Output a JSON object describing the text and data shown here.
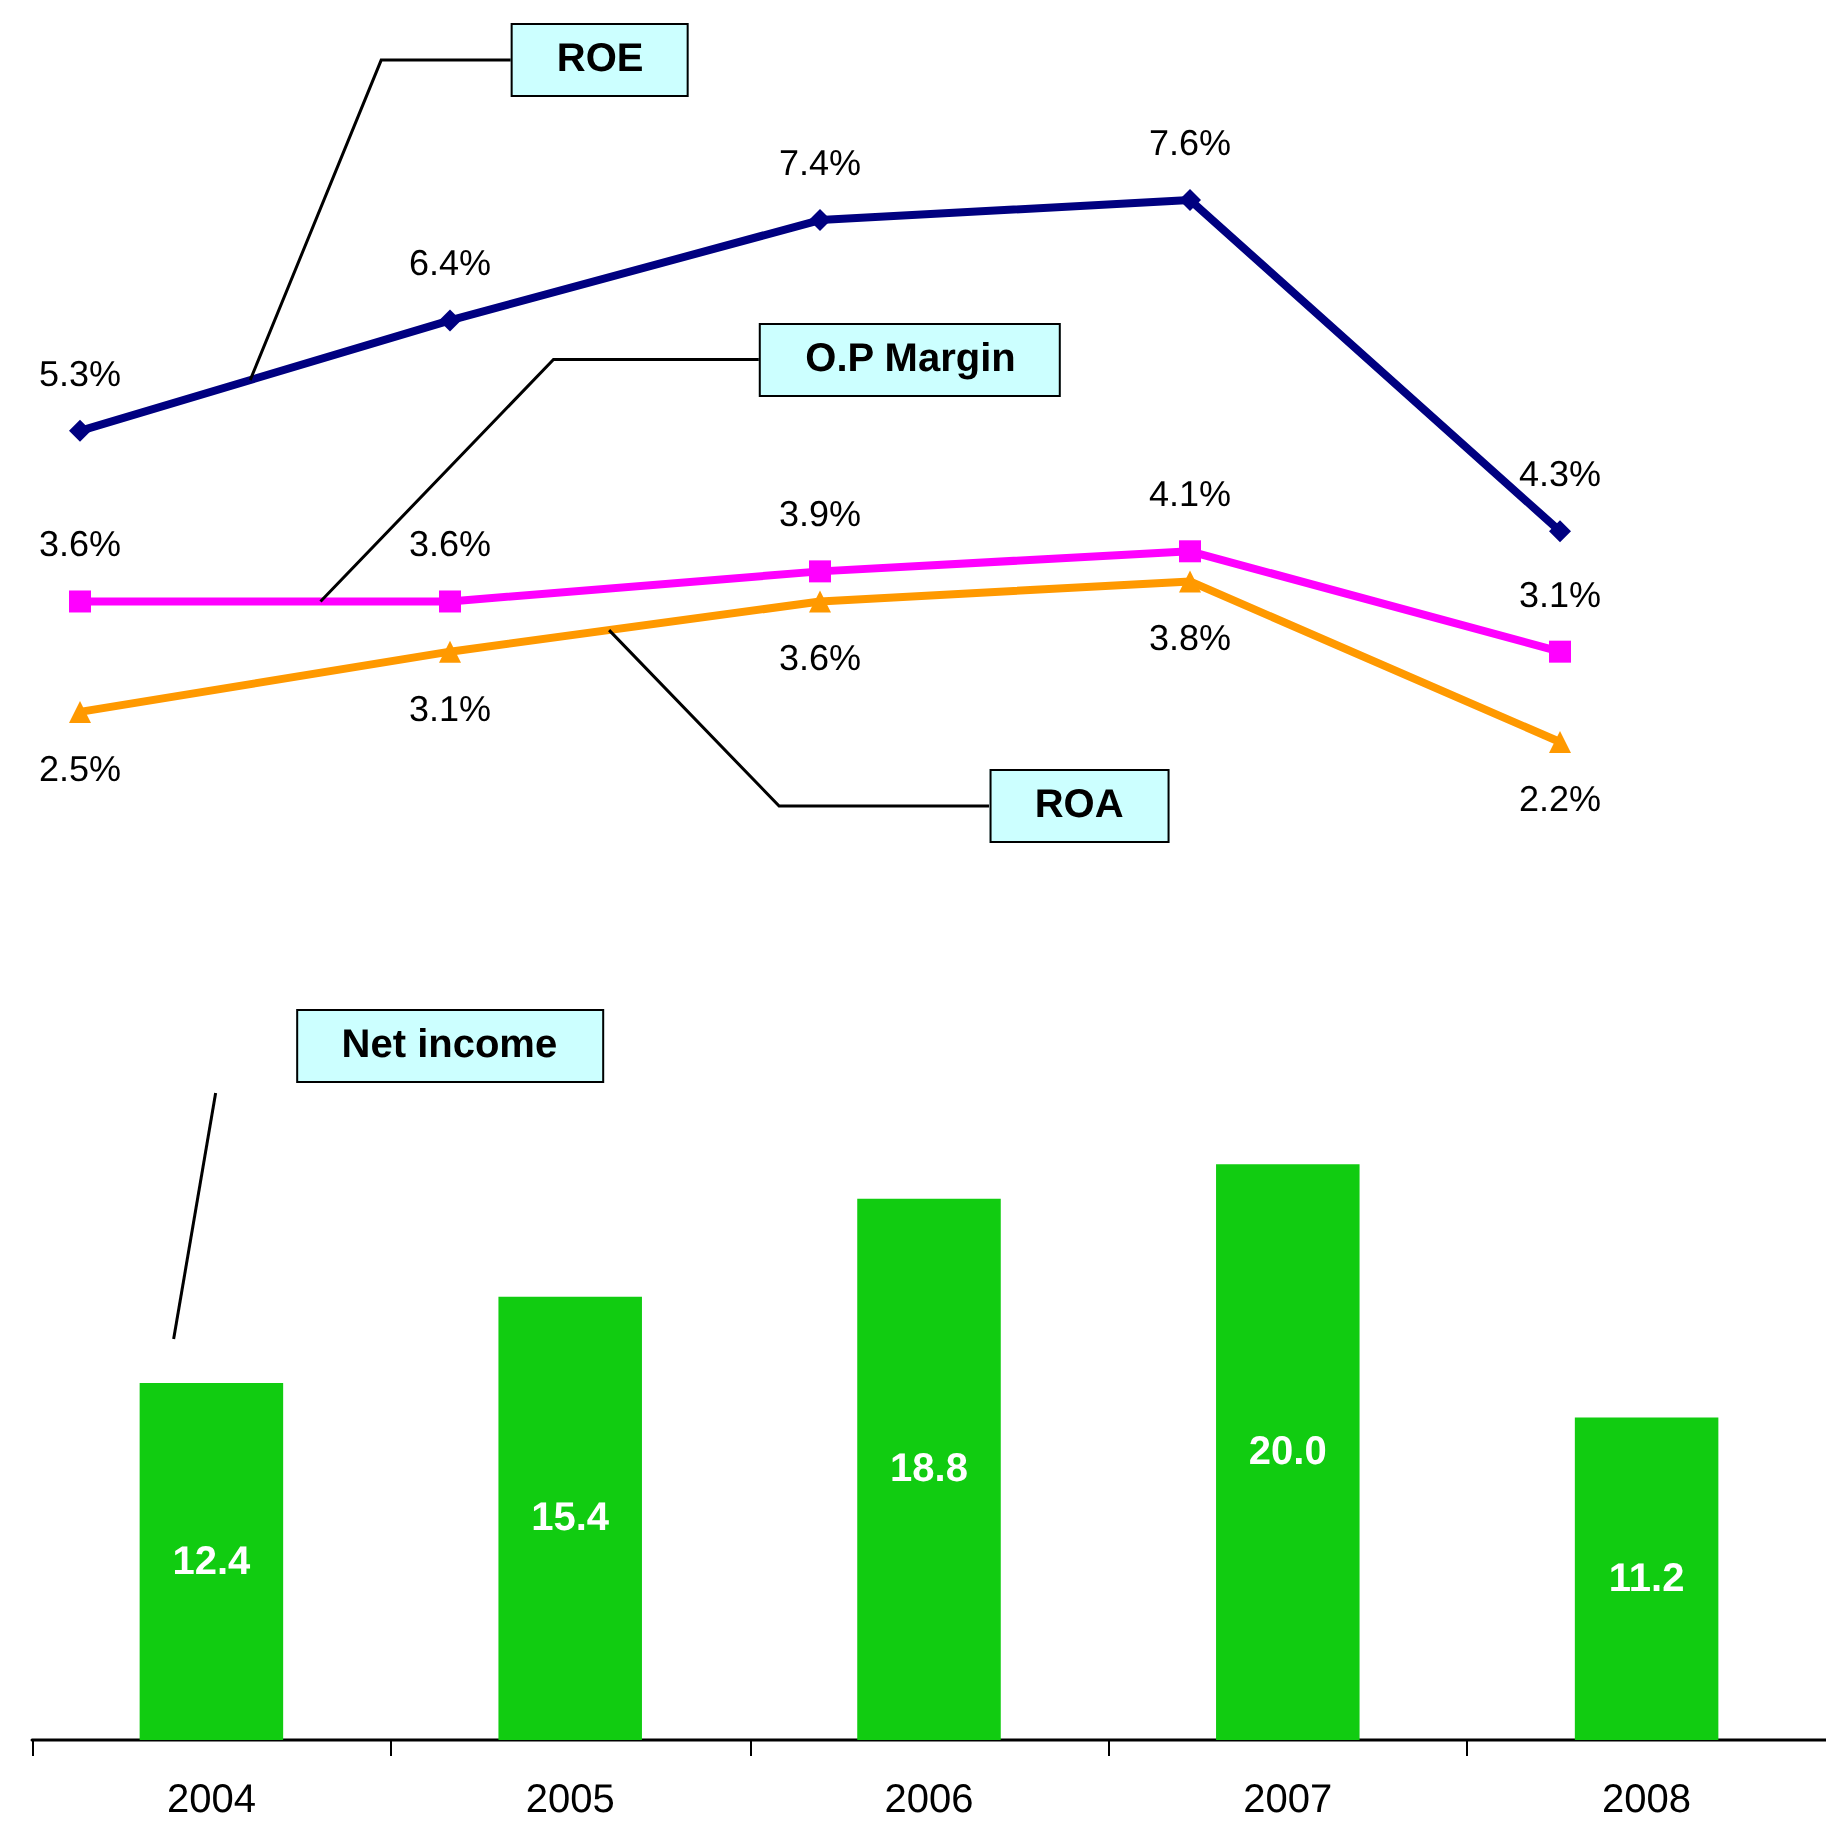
{
  "chart_data": [
    {
      "type": "line",
      "categories": [
        null,
        null,
        null,
        null,
        null
      ],
      "series": [
        {
          "name": "ROE",
          "color": "#000080",
          "marker": "diamond",
          "values": [
            5.3,
            6.4,
            7.4,
            7.6,
            4.3
          ],
          "value_labels": [
            "5.3%",
            "6.4%",
            "7.4%",
            "7.6%",
            "4.3%"
          ]
        },
        {
          "name": "O.P Margin",
          "color": "#ff00ff",
          "marker": "square",
          "values": [
            3.6,
            3.6,
            3.9,
            4.1,
            3.1
          ],
          "value_labels": [
            "3.6%",
            "3.6%",
            "3.9%",
            "4.1%",
            "3.1%"
          ]
        },
        {
          "name": "ROA",
          "color": "#ff9900",
          "marker": "triangle",
          "values": [
            2.5,
            3.1,
            3.6,
            3.8,
            2.2
          ],
          "value_labels": [
            "2.5%",
            "3.1%",
            "3.6%",
            "3.8%",
            "2.2%"
          ]
        }
      ]
    },
    {
      "type": "bar",
      "categories": [
        "2004",
        "2005",
        "2006",
        "2007",
        "2008"
      ],
      "series": [
        {
          "name": "Net income",
          "color": "#11cc11",
          "values": [
            12.4,
            15.4,
            18.8,
            20.0,
            11.2
          ],
          "value_labels": [
            "12.4",
            "15.4",
            "18.8",
            "20.0",
            "11.2"
          ]
        }
      ]
    }
  ]
}
